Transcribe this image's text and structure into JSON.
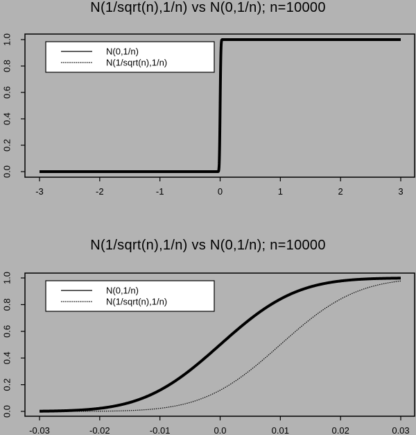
{
  "chart_data": [
    {
      "type": "line",
      "title": "N(1/sqrt(n),1/n) vs N(0,1/n); n=10000",
      "xlabel": "",
      "ylabel": "",
      "xlim": [
        -3,
        3
      ],
      "ylim": [
        0,
        1
      ],
      "x_ticks": [
        -3,
        -2,
        -1,
        0,
        1,
        2,
        3
      ],
      "x_tick_labels": [
        "-3",
        "-2",
        "-1",
        "0",
        "1",
        "2",
        "3"
      ],
      "y_ticks": [
        0,
        0.2,
        0.4,
        0.6,
        0.8,
        1.0
      ],
      "y_tick_labels": [
        "0.0",
        "0.2",
        "0.4",
        "0.6",
        "0.8",
        "1.0"
      ],
      "grid": false,
      "legend_position": "top-left",
      "legend": [
        "N(0,1/n)",
        "N(1/sqrt(n),1/n)"
      ],
      "series": [
        {
          "name": "N(0,1/n)",
          "style": "solid-thick",
          "distribution": {
            "mean": 0,
            "sd": 0.01
          },
          "x": [
            -3,
            -1,
            -0.03,
            -0.02,
            -0.01,
            0,
            0.01,
            0.02,
            0.03,
            1,
            3
          ],
          "values": [
            0,
            0,
            0.001,
            0.023,
            0.159,
            0.5,
            0.841,
            0.977,
            0.999,
            1,
            1
          ]
        },
        {
          "name": "N(1/sqrt(n),1/n)",
          "style": "dotted-points",
          "distribution": {
            "mean": 0.01,
            "sd": 0.01
          },
          "x": [
            -3,
            -1,
            -0.03,
            -0.02,
            -0.01,
            0,
            0.01,
            0.02,
            0.03,
            1,
            3
          ],
          "values": [
            0,
            0,
            0.0,
            0.001,
            0.023,
            0.159,
            0.5,
            0.841,
            0.977,
            1,
            1
          ]
        }
      ]
    },
    {
      "type": "line",
      "title": "N(1/sqrt(n),1/n) vs N(0,1/n); n=10000",
      "xlabel": "",
      "ylabel": "",
      "xlim": [
        -0.03,
        0.03
      ],
      "ylim": [
        0,
        1
      ],
      "x_ticks": [
        -0.03,
        -0.02,
        -0.01,
        0,
        0.01,
        0.02,
        0.03
      ],
      "x_tick_labels": [
        "-0.03",
        "-0.02",
        "-0.01",
        "0.0",
        "0.01",
        "0.02",
        "0.03"
      ],
      "y_ticks": [
        0,
        0.2,
        0.4,
        0.6,
        0.8,
        1.0
      ],
      "y_tick_labels": [
        "0.0",
        "0.2",
        "0.4",
        "0.6",
        "0.8",
        "1.0"
      ],
      "grid": false,
      "legend_position": "top-left",
      "legend": [
        "N(0,1/n)",
        "N(1/sqrt(n),1/n)"
      ],
      "series": [
        {
          "name": "N(0,1/n)",
          "style": "solid-thick",
          "distribution": {
            "mean": 0,
            "sd": 0.01
          },
          "x": [
            -0.03,
            -0.025,
            -0.02,
            -0.015,
            -0.01,
            -0.005,
            0,
            0.005,
            0.01,
            0.015,
            0.02,
            0.025,
            0.03
          ],
          "values": [
            0.001,
            0.006,
            0.023,
            0.067,
            0.159,
            0.309,
            0.5,
            0.691,
            0.841,
            0.933,
            0.977,
            0.994,
            0.999
          ]
        },
        {
          "name": "N(1/sqrt(n),1/n)",
          "style": "dotted-thin",
          "distribution": {
            "mean": 0.01,
            "sd": 0.01
          },
          "x": [
            -0.03,
            -0.025,
            -0.02,
            -0.015,
            -0.01,
            -0.005,
            0,
            0.005,
            0.01,
            0.015,
            0.02,
            0.025,
            0.03
          ],
          "values": [
            0.0,
            0.0,
            0.001,
            0.006,
            0.023,
            0.067,
            0.159,
            0.309,
            0.5,
            0.691,
            0.841,
            0.933,
            0.977
          ]
        }
      ]
    }
  ],
  "colors": {
    "background": "#b3b3b3",
    "line": "#000000",
    "legend_bg": "#ffffff"
  }
}
